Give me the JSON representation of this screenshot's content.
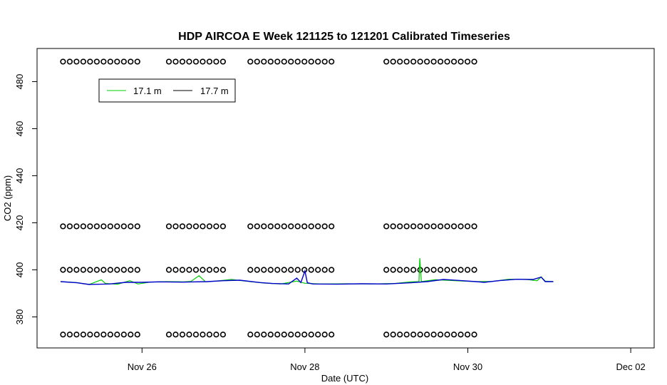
{
  "chart_data": {
    "type": "line",
    "title": "HDP AIRCOA E  Week 121125 to 121201  Calibrated Timeseries",
    "xlabel": "Date (UTC)",
    "ylabel": "CO2 (ppm)",
    "x_tick_labels": [
      "Nov 26",
      "Nov 28",
      "Nov 30",
      "Dec 02"
    ],
    "x_ticks_days": [
      1,
      3,
      5,
      7
    ],
    "y_ticks": [
      380,
      400,
      420,
      440,
      460,
      480
    ],
    "xlim_days": [
      0.0,
      7.25
    ],
    "ylim": [
      367,
      493
    ],
    "x_origin": "Nov 25",
    "grid": false,
    "legend_position": "top-left",
    "series": [
      {
        "name": "17.1 m",
        "color": "#00cc00",
        "points": [
          [
            0.0,
            395.0
          ],
          [
            0.2,
            394.6
          ],
          [
            0.35,
            393.8
          ],
          [
            0.5,
            395.8
          ],
          [
            0.55,
            394.2
          ],
          [
            0.7,
            393.9
          ],
          [
            0.85,
            395.4
          ],
          [
            0.95,
            394.0
          ],
          [
            1.1,
            394.8
          ],
          [
            1.3,
            395.0
          ],
          [
            1.5,
            394.9
          ],
          [
            1.6,
            395.1
          ],
          [
            1.7,
            397.5
          ],
          [
            1.78,
            394.9
          ],
          [
            1.95,
            395.4
          ],
          [
            2.1,
            395.9
          ],
          [
            2.3,
            395.1
          ],
          [
            2.5,
            394.4
          ],
          [
            2.7,
            394.0
          ],
          [
            2.9,
            395.2
          ],
          [
            3.0,
            394.3
          ],
          [
            3.2,
            394.0
          ],
          [
            3.5,
            394.1
          ],
          [
            3.8,
            394.0
          ],
          [
            4.1,
            394.2
          ],
          [
            4.3,
            394.9
          ],
          [
            4.4,
            395.0
          ],
          [
            4.41,
            405.0
          ],
          [
            4.43,
            395.0
          ],
          [
            4.6,
            395.8
          ],
          [
            4.8,
            395.5
          ],
          [
            5.1,
            395.0
          ],
          [
            5.3,
            395.1
          ],
          [
            5.5,
            396.0
          ],
          [
            5.7,
            396.0
          ],
          [
            5.85,
            395.4
          ],
          [
            5.9,
            397.0
          ],
          [
            5.95,
            395.2
          ],
          [
            6.05,
            395.0
          ]
        ]
      },
      {
        "name": "17.7 m",
        "color": "#0000cc",
        "points": [
          [
            0.0,
            395.0
          ],
          [
            0.2,
            394.5
          ],
          [
            0.35,
            393.8
          ],
          [
            0.6,
            394.0
          ],
          [
            0.8,
            394.7
          ],
          [
            1.0,
            394.7
          ],
          [
            1.2,
            394.9
          ],
          [
            1.5,
            394.8
          ],
          [
            1.8,
            395.0
          ],
          [
            2.0,
            395.4
          ],
          [
            2.2,
            395.6
          ],
          [
            2.45,
            394.6
          ],
          [
            2.6,
            394.2
          ],
          [
            2.8,
            394.0
          ],
          [
            2.9,
            396.5
          ],
          [
            2.95,
            394.6
          ],
          [
            3.0,
            399.5
          ],
          [
            3.03,
            394.5
          ],
          [
            3.1,
            394.0
          ],
          [
            3.4,
            393.9
          ],
          [
            3.7,
            394.1
          ],
          [
            4.0,
            394.0
          ],
          [
            4.3,
            394.5
          ],
          [
            4.5,
            395.0
          ],
          [
            4.7,
            395.9
          ],
          [
            4.9,
            395.5
          ],
          [
            5.1,
            395.0
          ],
          [
            5.2,
            394.7
          ],
          [
            5.4,
            395.5
          ],
          [
            5.6,
            396.0
          ],
          [
            5.8,
            395.9
          ],
          [
            5.9,
            396.9
          ],
          [
            5.95,
            395.0
          ],
          [
            6.05,
            395.0
          ]
        ]
      }
    ],
    "calibration_points": {
      "marker": "open-circle",
      "levels": [
        488.5,
        418.5,
        400,
        372.5
      ],
      "time_ranges_days": [
        [
          0.03,
          0.98
        ],
        [
          1.33,
          2.0
        ],
        [
          2.33,
          3.38
        ],
        [
          4.0,
          5.15
        ]
      ],
      "time_ranges_days_all": [
        [
          0.03,
          0.98
        ],
        [
          1.33,
          2.0
        ],
        [
          2.33,
          3.38
        ]
      ],
      "spacing_days": 0.083
    }
  }
}
